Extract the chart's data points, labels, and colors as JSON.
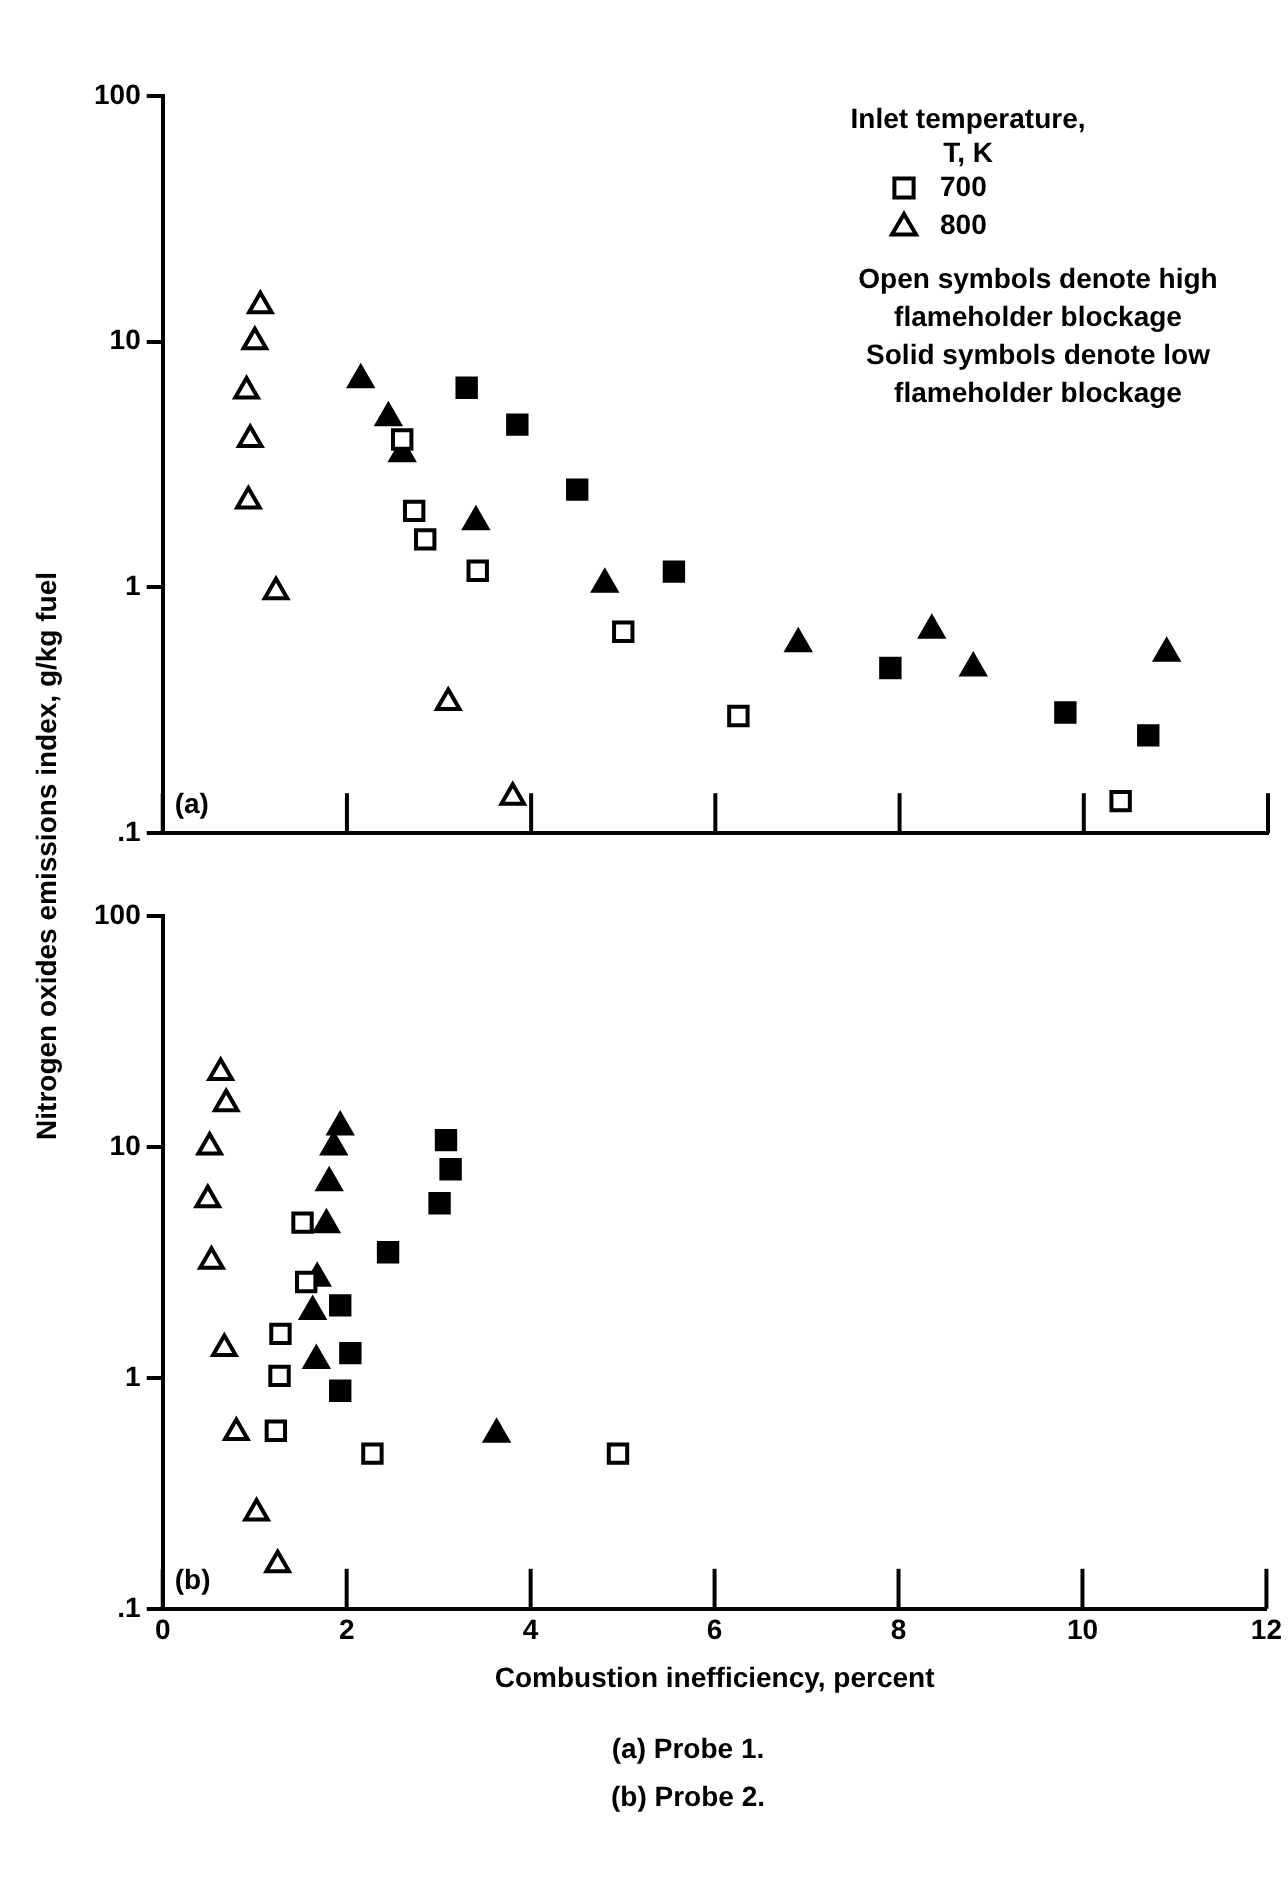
{
  "chart_data": [
    {
      "type": "scatter",
      "title": "(a) Probe 1.",
      "ylabel": "Nitrogen oxides emissions index, g/kg fuel",
      "legend_title": "Inlet temperature,\nT, K",
      "legend": "top right",
      "log": "y",
      "grid": false,
      "tick_labels": "y",
      "xlim": [
        0,
        12
      ],
      "xticks": [
        0,
        2,
        4,
        6,
        8,
        10,
        12
      ],
      "ylim": [
        0.1,
        100
      ],
      "yticks": [
        {
          "value": 0.1,
          "label": ".1"
        },
        1,
        10,
        100
      ],
      "annotations": [
        "(a)",
        "Open symbols denote high\nflameholder blockage",
        "Solid symbols denote low\nflameholder blockage"
      ],
      "series": [
        {
          "name": "700",
          "color": "#ffffff",
          "marker": "square",
          "x": [
            2.6,
            2.73,
            2.85,
            3.42,
            5.0,
            6.25,
            10.4
          ],
          "values": [
            4.0,
            2.05,
            1.57,
            1.17,
            0.66,
            0.3,
            0.135
          ]
        },
        {
          "name": "800",
          "color": "#ffffff",
          "marker": "triangle",
          "x": [
            1.06,
            1.0,
            0.91,
            0.95,
            0.93,
            1.23,
            3.1,
            3.8
          ],
          "values": [
            14,
            10,
            6.3,
            4.0,
            2.25,
            0.96,
            0.34,
            0.14
          ]
        },
        {
          "color": "#000000",
          "marker": "square",
          "x": [
            3.3,
            3.85,
            4.5,
            5.55,
            7.9,
            9.8,
            10.7
          ],
          "values": [
            6.5,
            4.6,
            2.5,
            1.16,
            0.47,
            0.31,
            0.25
          ]
        },
        {
          "color": "#000000",
          "marker": "triangle",
          "x": [
            2.15,
            2.45,
            2.6,
            3.4,
            4.8,
            6.9,
            8.35,
            8.8,
            10.9
          ],
          "values": [
            7,
            4.9,
            3.5,
            1.85,
            1.03,
            0.59,
            0.67,
            0.47,
            0.54
          ]
        }
      ]
    },
    {
      "type": "scatter",
      "title": "(b) Probe 2.",
      "xlabel": "Combustion inefficiency, percent",
      "log": "y",
      "grid": false,
      "xlim": [
        0,
        12
      ],
      "xticks": [
        0,
        2,
        4,
        6,
        8,
        10,
        12
      ],
      "ylim": [
        0.1,
        100
      ],
      "yticks": [
        {
          "value": 0.1,
          "label": ".1"
        },
        1,
        10,
        100
      ],
      "annotations": [
        "(b)"
      ],
      "series": [
        {
          "color": "#ffffff",
          "marker": "square",
          "x": [
            1.52,
            1.56,
            1.28,
            1.27,
            1.23,
            2.28,
            4.95
          ],
          "values": [
            4.7,
            2.6,
            1.55,
            1.02,
            0.59,
            0.47,
            0.47
          ]
        },
        {
          "color": "#ffffff",
          "marker": "triangle",
          "x": [
            0.63,
            0.69,
            0.51,
            0.49,
            0.53,
            0.67,
            0.8,
            1.02,
            1.25
          ],
          "values": [
            21,
            15.4,
            10,
            5.9,
            3.2,
            1.34,
            0.58,
            0.26,
            0.155
          ]
        },
        {
          "color": "#000000",
          "marker": "square",
          "x": [
            3.08,
            3.13,
            3.01,
            2.45,
            1.93,
            2.04,
            1.93
          ],
          "values": [
            10.7,
            8.0,
            5.7,
            3.5,
            2.06,
            1.28,
            0.88
          ]
        },
        {
          "color": "#000000",
          "marker": "triangle",
          "x": [
            1.93,
            1.86,
            1.81,
            1.78,
            1.68,
            1.63,
            1.67,
            3.63
          ],
          "values": [
            12.2,
            10,
            7.0,
            4.6,
            2.7,
            1.94,
            1.19,
            0.57
          ]
        }
      ]
    }
  ]
}
